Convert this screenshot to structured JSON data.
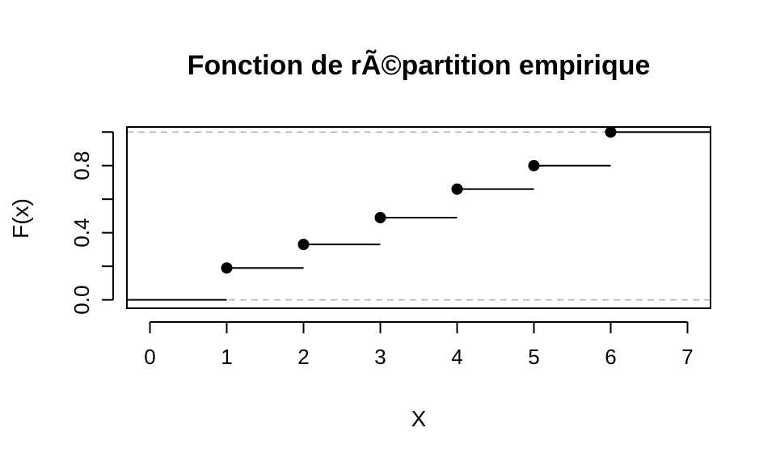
{
  "chart_data": {
    "type": "step",
    "title": "Fonction de rÃ©partition empirique",
    "xlabel": "X",
    "ylabel": "F(x)",
    "xlim": [
      -0.3,
      7.3
    ],
    "ylim": [
      -0.05,
      1.03
    ],
    "x_ticks": [
      "0",
      "1",
      "2",
      "3",
      "4",
      "5",
      "6",
      "7"
    ],
    "y_ticks": [
      "0.0",
      "0.4",
      "0.8"
    ],
    "points": [
      {
        "x": 1,
        "y": 0.19
      },
      {
        "x": 2,
        "y": 0.33
      },
      {
        "x": 3,
        "y": 0.49
      },
      {
        "x": 4,
        "y": 0.66
      },
      {
        "x": 5,
        "y": 0.8
      },
      {
        "x": 6,
        "y": 1.0
      }
    ],
    "reference_lines": [
      0,
      1
    ],
    "colors": {
      "steps": "#000000",
      "reference": "#b3b3b3",
      "frame": "#000000"
    }
  }
}
